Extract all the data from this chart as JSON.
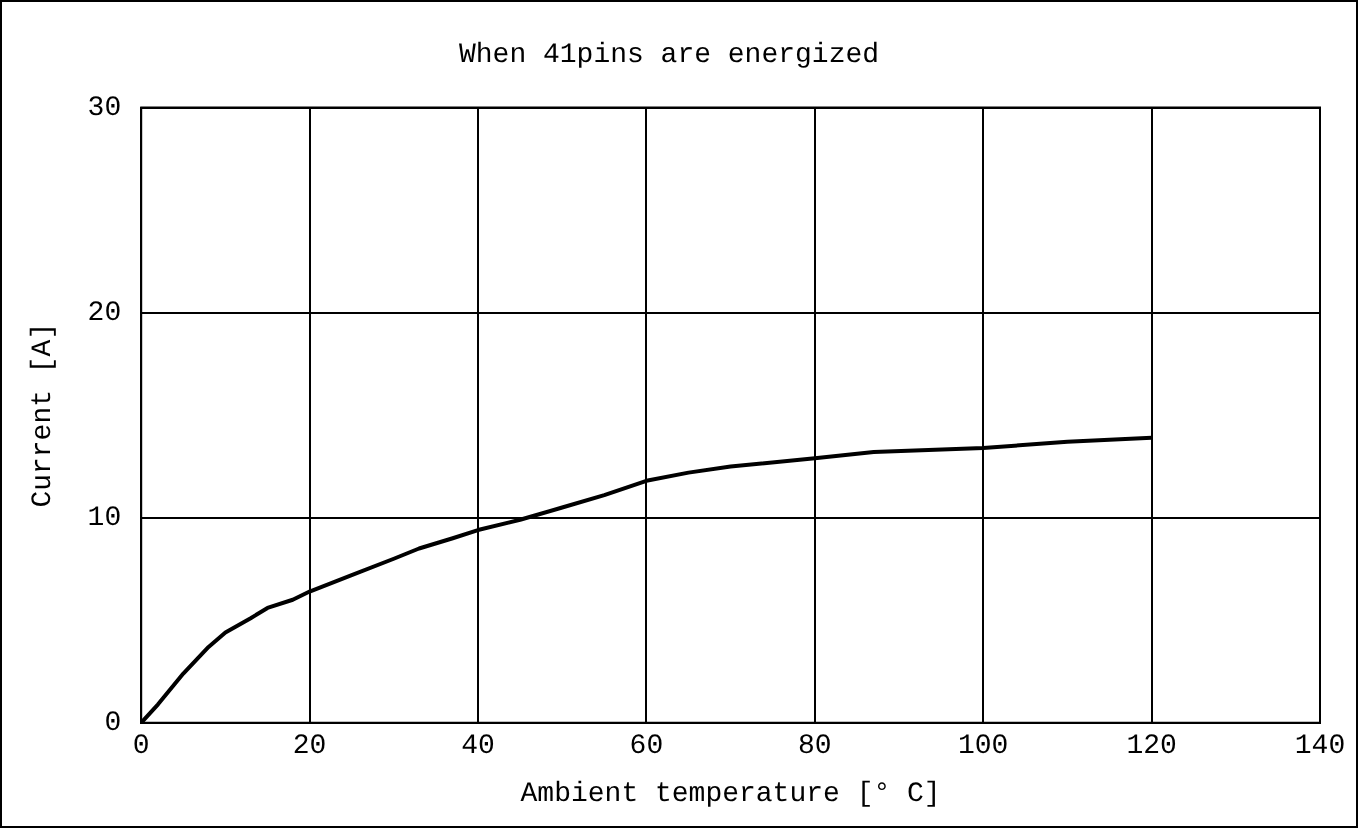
{
  "chart_data": {
    "type": "line",
    "title": "When 41pins are energized",
    "xlabel": "Ambient temperature [° C]",
    "ylabel": "Current [A]",
    "series": [
      {
        "color": "#000000",
        "x": [
          0,
          2,
          5,
          8,
          10,
          13,
          15,
          18,
          20,
          25,
          30,
          33,
          37,
          40,
          45,
          50,
          55,
          60,
          65,
          70,
          80,
          87,
          100,
          110,
          115,
          120
        ],
        "values": [
          0,
          0.9,
          2.4,
          3.7,
          4.4,
          5.1,
          5.6,
          6.0,
          6.4,
          7.2,
          8.0,
          8.5,
          9.0,
          9.4,
          9.9,
          10.5,
          11.1,
          11.8,
          12.2,
          12.5,
          12.9,
          13.2,
          13.4,
          13.7,
          13.8,
          13.9
        ]
      }
    ],
    "xlim": [
      0,
      140
    ],
    "xticks": [
      0,
      20,
      40,
      60,
      80,
      100,
      120,
      140
    ],
    "ylim": [
      0,
      30
    ],
    "yticks": [
      0,
      10,
      20,
      30
    ],
    "grid": true,
    "legend": false,
    "marker": "none",
    "line_style": "solid"
  }
}
